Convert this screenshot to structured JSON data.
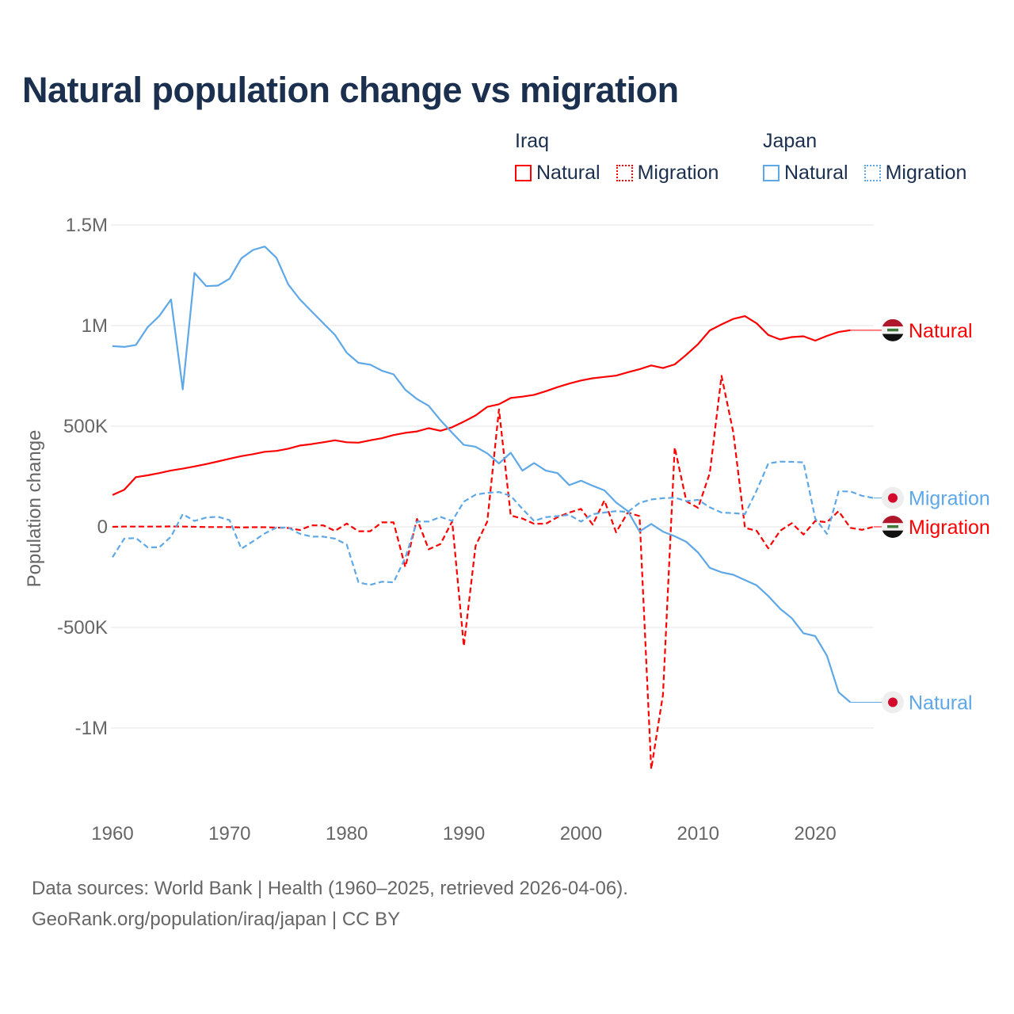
{
  "chart_data": {
    "type": "line",
    "title": "Natural population change vs migration",
    "ylabel": "Population change",
    "xlabel": "",
    "xlim": [
      1960,
      2025
    ],
    "ylim": [
      -1250000,
      1500000
    ],
    "x_ticks": [
      1960,
      1970,
      1980,
      1990,
      2000,
      2010,
      2020
    ],
    "x_tick_labels": [
      "1960",
      "1970",
      "1980",
      "1990",
      "2000",
      "2010",
      "2020"
    ],
    "y_ticks": [
      1500000,
      1000000,
      500000,
      0,
      -500000,
      -1000000
    ],
    "y_tick_labels": [
      "1.5M",
      "1M",
      "500K",
      "0",
      "-500K",
      "-1M"
    ],
    "grid": true,
    "legend_placement": "top-right",
    "legend": [
      {
        "country": "Iraq",
        "items": [
          "Natural",
          "Migration"
        ]
      },
      {
        "country": "Japan",
        "items": [
          "Natural",
          "Migration"
        ]
      }
    ],
    "series": [
      {
        "name": "Iraq Natural",
        "country": "Iraq",
        "kind": "Natural",
        "label": "Natural",
        "color": "#ff0000",
        "dash": false,
        "flag": "iraq-flag",
        "start_year": 1960,
        "values": [
          158000,
          184000,
          247000,
          256000,
          267000,
          280000,
          289000,
          300000,
          312000,
          325000,
          338000,
          351000,
          361000,
          373000,
          377000,
          388000,
          404000,
          411000,
          420000,
          430000,
          420000,
          418000,
          430000,
          440000,
          456000,
          467000,
          474000,
          490000,
          477000,
          495000,
          523000,
          553000,
          596000,
          609000,
          640000,
          647000,
          656000,
          674000,
          694000,
          712000,
          727000,
          738000,
          745000,
          751000,
          768000,
          783000,
          802000,
          789000,
          807000,
          855000,
          908000,
          976000,
          1006000,
          1033000,
          1047000,
          1011000,
          953000,
          931000,
          943000,
          947000,
          925000,
          949000,
          968000,
          977000
        ]
      },
      {
        "name": "Iraq Migration",
        "country": "Iraq",
        "kind": "Migration",
        "label": "Migration",
        "color": "#ff0000",
        "dash": true,
        "flag": "iraq-flag",
        "start_year": 1960,
        "values": [
          0,
          1000,
          1000,
          1000,
          1000,
          2000,
          1000,
          0,
          -1000,
          -1000,
          -1000,
          -3000,
          -2000,
          -2000,
          -4000,
          -6000,
          -16000,
          7000,
          7000,
          -20000,
          16000,
          -22000,
          -22000,
          22000,
          22000,
          -200000,
          39000,
          -112000,
          -86000,
          27000,
          -593000,
          -95000,
          26000,
          584000,
          56000,
          41000,
          15000,
          15000,
          48000,
          71000,
          89000,
          11000,
          131000,
          -27000,
          71000,
          53000,
          -1204000,
          -834000,
          395000,
          127000,
          94000,
          267000,
          750000,
          471000,
          -5000,
          -20000,
          -107000,
          -20000,
          18000,
          -38000,
          29000,
          23000,
          78000,
          -5000,
          -15000,
          0
        ]
      },
      {
        "name": "Japan Natural",
        "country": "Japan",
        "kind": "Natural",
        "label": "Natural",
        "color": "#5ea8e8",
        "dash": false,
        "flag": "japan-flag",
        "start_year": 1960,
        "values": [
          898000,
          894000,
          904000,
          992000,
          1048000,
          1130000,
          683000,
          1262000,
          1196000,
          1199000,
          1233000,
          1334000,
          1376000,
          1393000,
          1337000,
          1205000,
          1130000,
          1071000,
          1012000,
          953000,
          865000,
          815000,
          806000,
          776000,
          758000,
          681000,
          635000,
          601000,
          530000,
          467000,
          407000,
          398000,
          365000,
          315000,
          368000,
          279000,
          317000,
          279000,
          267000,
          207000,
          229000,
          204000,
          181000,
          121000,
          78000,
          -23000,
          14000,
          -24000,
          -47000,
          -75000,
          -128000,
          -204000,
          -226000,
          -238000,
          -265000,
          -291000,
          -344000,
          -407000,
          -454000,
          -529000,
          -543000,
          -641000,
          -822000,
          -872000
        ]
      },
      {
        "name": "Japan Migration",
        "country": "Japan",
        "kind": "Migration",
        "label": "Migration",
        "color": "#5ea8e8",
        "dash": true,
        "flag": "japan-flag",
        "start_year": 1960,
        "values": [
          -151000,
          -59000,
          -56000,
          -102000,
          -102000,
          -49000,
          63000,
          29000,
          46000,
          50000,
          33000,
          -109000,
          -72000,
          -33000,
          -4000,
          -4000,
          -35000,
          -49000,
          -49000,
          -59000,
          -88000,
          -276000,
          -289000,
          -273000,
          -276000,
          -154000,
          26000,
          26000,
          49000,
          29000,
          125000,
          160000,
          169000,
          173000,
          154000,
          89000,
          29000,
          48000,
          53000,
          59000,
          26000,
          63000,
          71000,
          78000,
          74000,
          119000,
          136000,
          142000,
          145000,
          128000,
          134000,
          97000,
          71000,
          68000,
          63000,
          181000,
          315000,
          324000,
          323000,
          320000,
          41000,
          -35000,
          176000,
          176000,
          154000,
          143000
        ]
      }
    ]
  },
  "footer": {
    "line1": "Data sources: World Bank | Health (1960–2025, retrieved 2026-04-06).",
    "line2": "GeoRank.org/population/iraq/japan | CC BY"
  }
}
